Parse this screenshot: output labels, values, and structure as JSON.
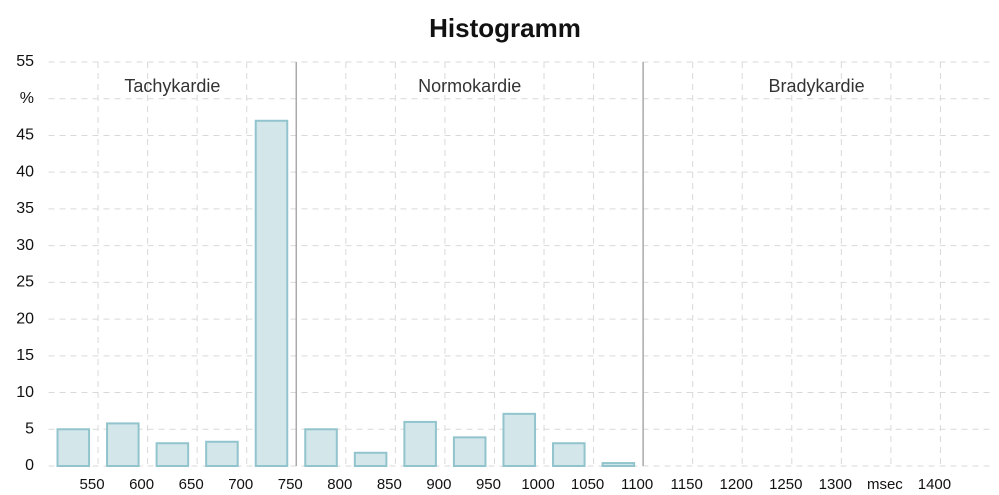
{
  "chart_data": {
    "type": "histogram",
    "title": "Histogramm",
    "bins": [
      500,
      550,
      600,
      650,
      700,
      750,
      800,
      850,
      900,
      950,
      1000,
      1050,
      1100
    ],
    "values": [
      5.0,
      5.8,
      3.1,
      3.3,
      47,
      5.0,
      1.8,
      6.0,
      3.9,
      7.1,
      3.1,
      0.4
    ],
    "color": "#d3e6ea",
    "edge_color": "#92c4cd",
    "xlim": [
      500,
      1450
    ],
    "ylim": [
      0,
      55
    ],
    "xticks": [
      550,
      600,
      650,
      700,
      750,
      800,
      850,
      900,
      950,
      1000,
      1050,
      1100,
      1150,
      1200,
      1250,
      1300,
      {
        "value": 1350,
        "label": "msec"
      },
      1400
    ],
    "yticks": [
      0,
      5,
      10,
      15,
      20,
      25,
      30,
      35,
      40,
      45,
      {
        "value": 50,
        "label": "%"
      },
      55
    ],
    "grid": true,
    "dividers": [
      750,
      1100
    ],
    "zones": [
      "Tachykardie",
      "Normokardie",
      "Bradykardie"
    ]
  }
}
